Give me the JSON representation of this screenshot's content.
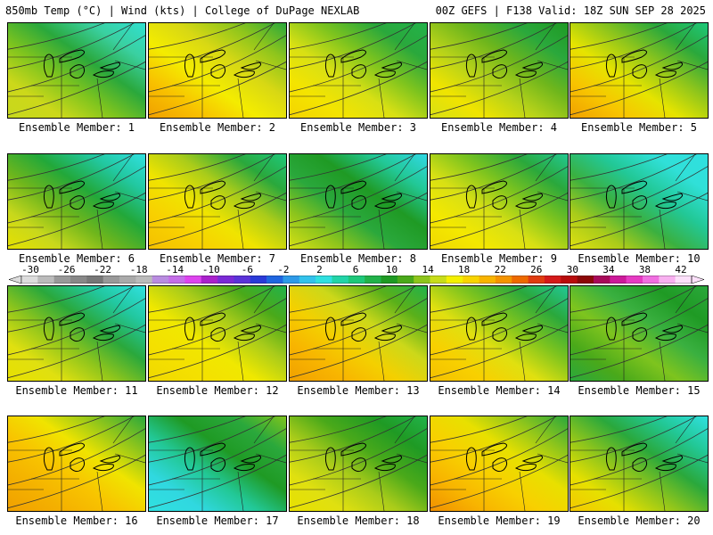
{
  "header": {
    "left_title": "850mb Temp (°C) | Wind (kts) | College of DuPage NEXLAB",
    "right_title": "00Z GEFS | F138 Valid: 18Z SUN SEP 28 2025"
  },
  "colorbar": {
    "tick_labels": [
      "-30",
      "-26",
      "-22",
      "-18",
      "-14",
      "-10",
      "-6",
      "-2",
      "2",
      "6",
      "10",
      "14",
      "18",
      "22",
      "26",
      "30",
      "34",
      "38",
      "42"
    ],
    "colors": [
      "#dddddd",
      "#bbbbbb",
      "#999999",
      "#888888",
      "#777777",
      "#999999",
      "#aaaaaa",
      "#bbbbbb",
      "#b98ce0",
      "#c46ee8",
      "#dd44ee",
      "#aa22cc",
      "#7a2ad6",
      "#5b32d8",
      "#2a3ad8",
      "#1f66e0",
      "#2e9ae8",
      "#33c2ec",
      "#30e0e0",
      "#22d4a8",
      "#1ec87a",
      "#22b24a",
      "#1f9a24",
      "#4aa91a",
      "#8ec51c",
      "#c8dd1a",
      "#f4f000",
      "#f8d400",
      "#f8b400",
      "#f49400",
      "#ee6a00",
      "#e03c10",
      "#d41a1a",
      "#b80c0c",
      "#8c0808",
      "#a80a5a",
      "#cc1a9a",
      "#e63ac2",
      "#f06ee0",
      "#f8b0f0",
      "#fce0fa"
    ]
  },
  "panels": [
    {
      "label": "Ensemble Member: 1",
      "grad": [
        "#30e0d0",
        "#3ad0a0",
        "#2aa83c",
        "#7ec41e",
        "#ccd81a",
        "#c8d81c"
      ]
    },
    {
      "label": "Ensemble Member: 2",
      "grad": [
        "#2aa83c",
        "#8ec51c",
        "#d8d814",
        "#f4ec00",
        "#f8c000",
        "#f0a000"
      ]
    },
    {
      "label": "Ensemble Member: 3",
      "grad": [
        "#22b24a",
        "#2aa83c",
        "#7ec41e",
        "#d8e014",
        "#f4e400",
        "#f4d400"
      ]
    },
    {
      "label": "Ensemble Member: 4",
      "grad": [
        "#1f9a24",
        "#2aa83c",
        "#6fb61c",
        "#b6d21a",
        "#f0e400",
        "#d8e014"
      ]
    },
    {
      "label": "Ensemble Member: 5",
      "grad": [
        "#1ec87a",
        "#2aa83c",
        "#8ec51c",
        "#e6e400",
        "#f8c400",
        "#f0a000"
      ]
    },
    {
      "label": "Ensemble Member: 6",
      "grad": [
        "#30e0e0",
        "#22c8a0",
        "#22a83a",
        "#6fb61c",
        "#c8d81c",
        "#e6e000"
      ]
    },
    {
      "label": "Ensemble Member: 7",
      "grad": [
        "#1ec87a",
        "#2aa83c",
        "#aacc1a",
        "#f0e400",
        "#f8d000",
        "#f4c000"
      ]
    },
    {
      "label": "Ensemble Member: 8",
      "grad": [
        "#30d8e4",
        "#22c896",
        "#1f9a24",
        "#2aa83c",
        "#8ec51c",
        "#d8e014"
      ]
    },
    {
      "label": "Ensemble Member: 9",
      "grad": [
        "#22c890",
        "#2aa83c",
        "#7ec41e",
        "#d8e014",
        "#f4e800",
        "#f0d800"
      ]
    },
    {
      "label": "Ensemble Member: 10",
      "grad": [
        "#30e0e0",
        "#30e0d8",
        "#22c896",
        "#3ab040",
        "#aacc1a",
        "#e0e010"
      ]
    },
    {
      "label": "Ensemble Member: 11",
      "grad": [
        "#30e0e0",
        "#22c8a0",
        "#2aa83c",
        "#8ec51c",
        "#e0e010",
        "#e8e000"
      ]
    },
    {
      "label": "Ensemble Member: 12",
      "grad": [
        "#22b24a",
        "#4aa91a",
        "#aacc1a",
        "#f0e800",
        "#f4e000",
        "#f0d800"
      ]
    },
    {
      "label": "Ensemble Member: 13",
      "grad": [
        "#22b24a",
        "#5ab01a",
        "#ccd81a",
        "#f4d000",
        "#f8b400",
        "#f0a000"
      ]
    },
    {
      "label": "Ensemble Member: 14",
      "grad": [
        "#22c896",
        "#2aa83c",
        "#7ec41e",
        "#e0e010",
        "#f8d000",
        "#f4c000"
      ]
    },
    {
      "label": "Ensemble Member: 15",
      "grad": [
        "#2aa83c",
        "#1f9a24",
        "#3ab040",
        "#7ec41e",
        "#4aa91a",
        "#2aa83c"
      ]
    },
    {
      "label": "Ensemble Member: 16",
      "grad": [
        "#2aa83c",
        "#8ec51c",
        "#f0e400",
        "#f8c400",
        "#f4b000",
        "#f0a000"
      ]
    },
    {
      "label": "Ensemble Member: 17",
      "grad": [
        "#7ec41e",
        "#2aa83c",
        "#1f9a24",
        "#22c896",
        "#30d8e0",
        "#30e0e0"
      ]
    },
    {
      "label": "Ensemble Member: 18",
      "grad": [
        "#22b24a",
        "#1f9a24",
        "#4aa91a",
        "#aacc1a",
        "#e0e010",
        "#e8e000"
      ]
    },
    {
      "label": "Ensemble Member: 19",
      "grad": [
        "#2aa83c",
        "#8ec51c",
        "#e8e000",
        "#f8d000",
        "#f8b400",
        "#f09000"
      ]
    },
    {
      "label": "Ensemble Member: 20",
      "grad": [
        "#30e0e0",
        "#22c896",
        "#2aa83c",
        "#8ec51c",
        "#e6e000",
        "#f4c800"
      ]
    }
  ]
}
